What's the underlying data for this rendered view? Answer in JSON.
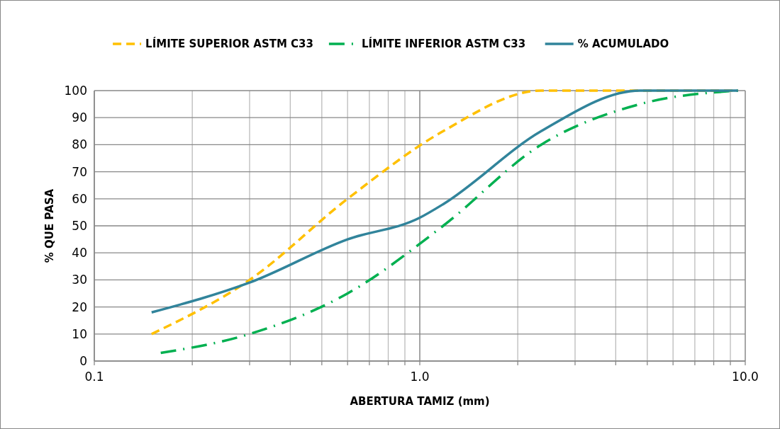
{
  "chart_data": {
    "type": "line",
    "xlabel": "ABERTURA TAMIZ (mm)",
    "ylabel": "% QUE PASA",
    "log": "x",
    "xlim": [
      0.1,
      10
    ],
    "ylim": [
      0,
      100
    ],
    "xticks": [
      {
        "value": 0.1,
        "label": "0.1"
      },
      {
        "value": 0.2,
        "label": null
      },
      {
        "value": 0.3,
        "label": null
      },
      {
        "value": 0.4,
        "label": null
      },
      {
        "value": 0.5,
        "label": null
      },
      {
        "value": 0.6,
        "label": null
      },
      {
        "value": 0.7,
        "label": null
      },
      {
        "value": 0.8,
        "label": null
      },
      {
        "value": 0.9,
        "label": null
      },
      {
        "value": 1,
        "label": "1.0"
      },
      {
        "value": 2,
        "label": null
      },
      {
        "value": 3,
        "label": null
      },
      {
        "value": 4,
        "label": null
      },
      {
        "value": 5,
        "label": null
      },
      {
        "value": 6,
        "label": null
      },
      {
        "value": 7,
        "label": null
      },
      {
        "value": 8,
        "label": null
      },
      {
        "value": 9,
        "label": null
      },
      {
        "value": 10,
        "label": "10.0"
      }
    ],
    "yticks": [
      0,
      10,
      20,
      30,
      40,
      50,
      60,
      70,
      80,
      90,
      100
    ],
    "grid": true,
    "legend": "top",
    "marker": "none",
    "series": [
      {
        "name": "LÍMITE SUPERIOR ASTM C33",
        "color": "#ffc000",
        "line_style": "dashed",
        "x": [
          0.15,
          0.3,
          0.6,
          1.18,
          2.36,
          4.75,
          9.5
        ],
        "values": [
          10,
          30,
          60,
          85,
          100,
          100,
          100
        ]
      },
      {
        "name": "LÍMITE INFERIOR ASTM C33",
        "color": "#00b050",
        "line_style": "dashdot",
        "x": [
          0.16,
          0.3,
          0.6,
          1.18,
          2.36,
          4.75,
          9.5
        ],
        "values": [
          3,
          10,
          25,
          50,
          80,
          95,
          100
        ]
      },
      {
        "name": "% ACUMULADO",
        "color": "#31849b",
        "line_style": "solid",
        "x": [
          0.15,
          0.3,
          0.6,
          1.0,
          1.18,
          2.36,
          4.75,
          9.5
        ],
        "values": [
          18,
          29,
          45,
          53,
          58,
          85,
          100,
          100
        ]
      }
    ]
  }
}
